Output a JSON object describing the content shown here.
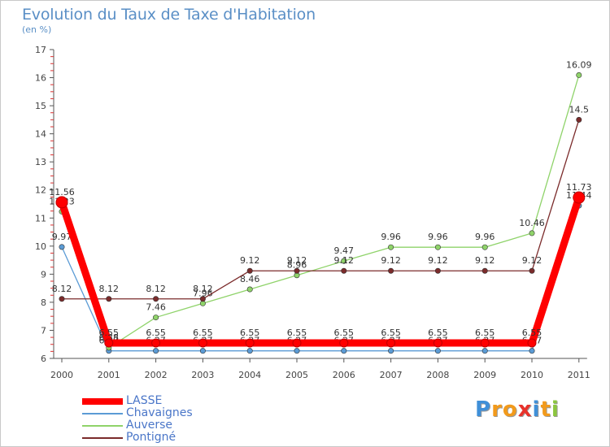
{
  "title": "Evolution du Taux de Taxe d'Habitation",
  "subtitle": "(en %)",
  "logo": {
    "text": "Proxiti",
    "letters": [
      "P",
      "r",
      "o",
      "x",
      "i",
      "t",
      "i"
    ],
    "colors": [
      "#3f8fd8",
      "#f29a1b",
      "#f29a1b",
      "#e8322b",
      "#3f8fd8",
      "#f29a1b",
      "#8cc63f"
    ]
  },
  "chart_data": {
    "type": "line",
    "title": "Evolution du Taux de Taxe d'Habitation",
    "ylabel": "(en %)",
    "xlabel": "",
    "ylim": [
      6,
      17
    ],
    "yticks": [
      "6",
      "7",
      "8",
      "9",
      "10",
      "11",
      "12",
      "13",
      "14",
      "15",
      "16",
      "17"
    ],
    "categories": [
      "2000",
      "2001",
      "2002",
      "2003",
      "2004",
      "2005",
      "2006",
      "2007",
      "2008",
      "2009",
      "2010",
      "2011"
    ],
    "grid": false,
    "legend_position": "bottom-left",
    "series": [
      {
        "name": "Chavaignes",
        "color": "#5b9bd5",
        "values": [
          9.97,
          6.27,
          6.27,
          6.27,
          6.27,
          6.27,
          6.27,
          6.27,
          6.27,
          6.27,
          6.27,
          11.44
        ],
        "labels": [
          "9.97",
          "6.27",
          "6.27",
          "6.27",
          "6.27",
          "6.27",
          "6.27",
          "6.27",
          "6.27",
          "6.27",
          "6.27",
          "11.44"
        ]
      },
      {
        "name": "Auverse",
        "color": "#8fd36a",
        "values": [
          11.23,
          6.38,
          7.46,
          7.96,
          8.46,
          8.96,
          9.47,
          9.96,
          9.96,
          9.96,
          10.46,
          16.09
        ],
        "labels": [
          "11.23",
          "6.38",
          "7.46",
          "7.96",
          "8.46",
          "8.96",
          "9.47",
          "9.96",
          "9.96",
          "9.96",
          "10.46",
          "16.09"
        ]
      },
      {
        "name": "Pontigné",
        "color": "#7b2b2b",
        "values": [
          8.12,
          8.12,
          8.12,
          8.12,
          9.12,
          9.12,
          9.12,
          9.12,
          9.12,
          9.12,
          9.12,
          14.5
        ],
        "labels": [
          "8.12",
          "8.12",
          "8.12",
          "8.12",
          "9.12",
          "9.12",
          "9.12",
          "9.12",
          "9.12",
          "9.12",
          "9.12",
          "14.5"
        ]
      },
      {
        "name": "LASSE",
        "color": "#ff0000",
        "values": [
          11.56,
          6.55,
          6.55,
          6.55,
          6.55,
          6.55,
          6.55,
          6.55,
          6.55,
          6.55,
          6.55,
          11.73
        ],
        "labels": [
          "11.56",
          "6.55",
          "6.55",
          "6.55",
          "6.55",
          "6.55",
          "6.55",
          "6.55",
          "6.55",
          "6.55",
          "6.55",
          "11.73"
        ]
      }
    ],
    "legend": [
      "LASSE",
      "Chavaignes",
      "Auverse",
      "Pontigné"
    ]
  }
}
